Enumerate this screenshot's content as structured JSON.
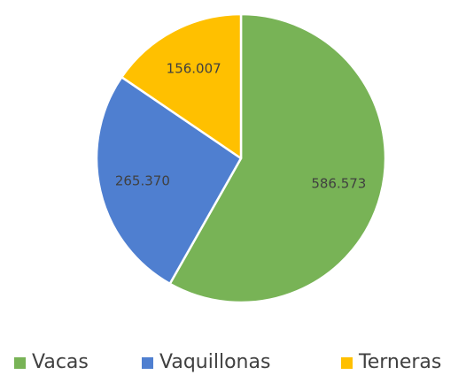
{
  "chart_data": {
    "type": "pie",
    "categories": [
      "Vacas",
      "Vaquillonas",
      "Terneras"
    ],
    "values": [
      586573,
      265370,
      156007
    ],
    "value_labels": [
      "586.573",
      "265.370",
      "156.007"
    ],
    "colors": [
      "#78b356",
      "#4f7fd0",
      "#ffc000"
    ],
    "legend": "bottom"
  }
}
